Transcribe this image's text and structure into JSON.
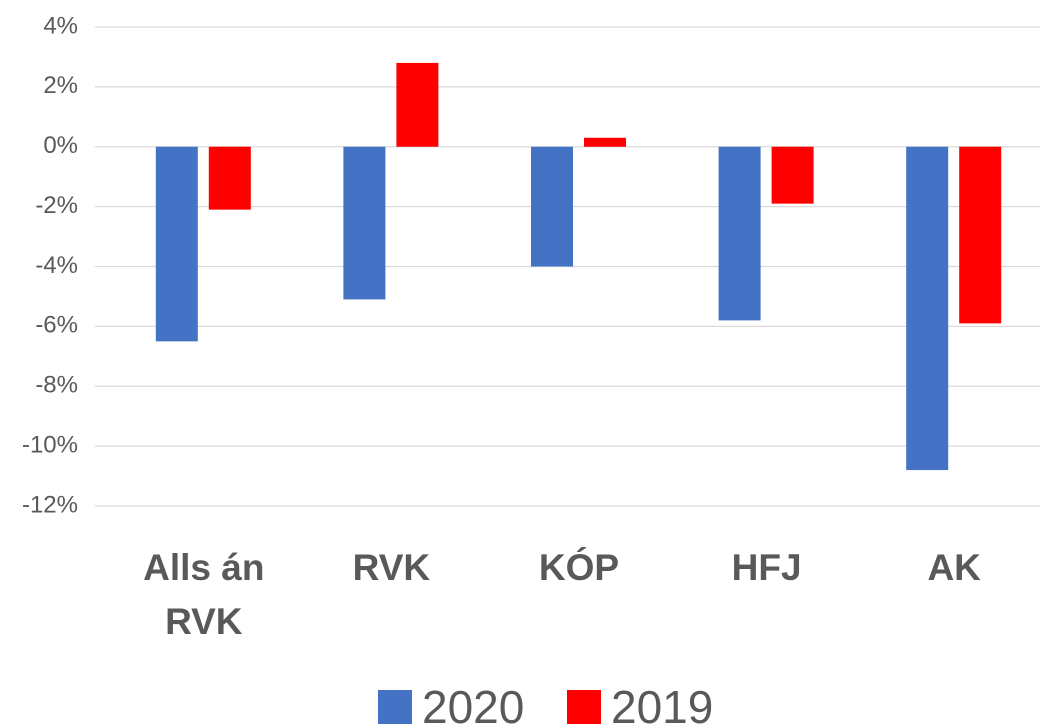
{
  "chart_data": {
    "type": "bar",
    "categories": [
      "Alls án RVK",
      "RVK",
      "KÓP",
      "HFJ",
      "AK"
    ],
    "series": [
      {
        "name": "2020",
        "color": "#4472c4",
        "values": [
          -6.5,
          -5.1,
          -4.0,
          -5.8,
          -10.8
        ]
      },
      {
        "name": "2019",
        "color": "#ff0000",
        "values": [
          -2.1,
          2.8,
          0.3,
          -1.9,
          -5.9
        ]
      }
    ],
    "ylim": [
      -12,
      4
    ],
    "yticks": [
      {
        "value": 4,
        "label": "4%"
      },
      {
        "value": 2,
        "label": "2%"
      },
      {
        "value": 0,
        "label": "0%"
      },
      {
        "value": -2,
        "label": "-2%"
      },
      {
        "value": -4,
        "label": "-4%"
      },
      {
        "value": -6,
        "label": "-6%"
      },
      {
        "value": -8,
        "label": "-8%"
      },
      {
        "value": -10,
        "label": "-10%"
      },
      {
        "value": -12,
        "label": "-12%"
      }
    ],
    "grid": true,
    "legend": "bottom"
  }
}
